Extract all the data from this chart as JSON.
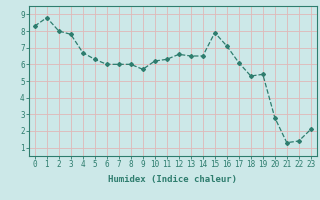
{
  "x": [
    0,
    1,
    2,
    3,
    4,
    5,
    6,
    7,
    8,
    9,
    10,
    11,
    12,
    13,
    14,
    15,
    16,
    17,
    18,
    19,
    20,
    21,
    22,
    23
  ],
  "y": [
    8.3,
    8.8,
    8.0,
    7.8,
    6.7,
    6.3,
    6.0,
    6.0,
    6.0,
    5.7,
    6.2,
    6.3,
    6.6,
    6.5,
    6.5,
    7.9,
    7.1,
    6.1,
    5.3,
    5.4,
    2.8,
    1.3,
    1.4,
    2.1
  ],
  "line_color": "#2e7d6e",
  "marker": "D",
  "marker_size": 2,
  "linewidth": 0.9,
  "bg_color": "#cce8e8",
  "grid_color": "#e0b8b8",
  "xlabel": "Humidex (Indice chaleur)",
  "xlim": [
    -0.5,
    23.5
  ],
  "ylim": [
    0.5,
    9.5
  ],
  "xticks": [
    0,
    1,
    2,
    3,
    4,
    5,
    6,
    7,
    8,
    9,
    10,
    11,
    12,
    13,
    14,
    15,
    16,
    17,
    18,
    19,
    20,
    21,
    22,
    23
  ],
  "yticks": [
    1,
    2,
    3,
    4,
    5,
    6,
    7,
    8,
    9
  ],
  "xlabel_fontsize": 6.5,
  "tick_fontsize": 5.5
}
